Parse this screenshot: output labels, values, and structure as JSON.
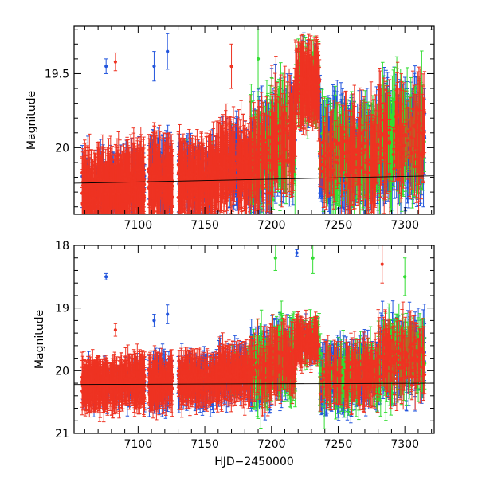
{
  "chart_data": [
    {
      "type": "scatter",
      "panel": "top",
      "title": "",
      "xlabel": "",
      "ylabel": "Magnitude",
      "xlim": [
        7052,
        7322
      ],
      "ylim": [
        20.45,
        19.18
      ],
      "y_inverted": true,
      "xticks": [
        {
          "value": 7100,
          "label": "7100"
        },
        {
          "value": 7150,
          "label": "7150"
        },
        {
          "value": 7200,
          "label": "7200"
        },
        {
          "value": 7250,
          "label": "7250"
        },
        {
          "value": 7300,
          "label": "7300"
        }
      ],
      "yticks": [
        {
          "value": 19.5,
          "label": "19.5"
        },
        {
          "value": 20.0,
          "label": "20"
        }
      ],
      "reference_line": {
        "slope_note": "faint black trend line",
        "x": [
          7052,
          7322
        ],
        "y": [
          20.24,
          20.19
        ]
      },
      "series": [
        {
          "name": "blue",
          "color": "#2255dd"
        },
        {
          "name": "green",
          "color": "#33dd33"
        },
        {
          "name": "red",
          "color": "#ee3322"
        }
      ],
      "segments": [
        {
          "x0": 7058,
          "x1": 7090,
          "center": 20.28,
          "spread": 0.17,
          "err": 0.18,
          "weights": [
            0.12,
            0.0,
            0.88
          ]
        },
        {
          "x0": 7090,
          "x1": 7105,
          "center": 20.25,
          "spread": 0.18,
          "err": 0.19,
          "weights": [
            0.22,
            0.0,
            0.78
          ]
        },
        {
          "x0": 7108,
          "x1": 7126,
          "center": 20.22,
          "spread": 0.17,
          "err": 0.2,
          "weights": [
            0.3,
            0.0,
            0.7
          ]
        },
        {
          "x0": 7130,
          "x1": 7160,
          "center": 20.22,
          "spread": 0.18,
          "err": 0.18,
          "weights": [
            0.25,
            0.02,
            0.73
          ]
        },
        {
          "x0": 7160,
          "x1": 7184,
          "center": 20.12,
          "spread": 0.18,
          "err": 0.2,
          "weights": [
            0.25,
            0.03,
            0.72
          ]
        },
        {
          "x0": 7184,
          "x1": 7200,
          "center": 20.08,
          "spread": 0.25,
          "err": 0.25,
          "weights": [
            0.4,
            0.3,
            0.3
          ]
        },
        {
          "x0": 7200,
          "x1": 7218,
          "center": 19.95,
          "spread": 0.28,
          "err": 0.25,
          "weights": [
            0.35,
            0.3,
            0.35
          ]
        },
        {
          "x0": 7218,
          "x1": 7236,
          "center": 19.58,
          "spread": 0.12,
          "err": 0.2,
          "weights": [
            0.1,
            0.25,
            0.65
          ]
        },
        {
          "x0": 7236,
          "x1": 7260,
          "center": 20.05,
          "spread": 0.25,
          "err": 0.25,
          "weights": [
            0.5,
            0.3,
            0.2
          ]
        },
        {
          "x0": 7260,
          "x1": 7280,
          "center": 20.05,
          "spread": 0.25,
          "err": 0.25,
          "weights": [
            0.35,
            0.3,
            0.35
          ]
        },
        {
          "x0": 7280,
          "x1": 7315,
          "center": 19.95,
          "spread": 0.3,
          "err": 0.25,
          "weights": [
            0.35,
            0.35,
            0.3
          ]
        }
      ],
      "notable_points": [
        {
          "x": 7076,
          "y": 19.45,
          "err": 0.05,
          "series": "blue"
        },
        {
          "x": 7083,
          "y": 19.42,
          "err": 0.06,
          "series": "red"
        },
        {
          "x": 7112,
          "y": 19.45,
          "err": 0.1,
          "series": "blue"
        },
        {
          "x": 7122,
          "y": 19.35,
          "err": 0.12,
          "series": "blue"
        },
        {
          "x": 7170,
          "y": 19.45,
          "err": 0.15,
          "series": "red"
        },
        {
          "x": 7190,
          "y": 19.4,
          "err": 0.2,
          "series": "green"
        }
      ]
    },
    {
      "type": "scatter",
      "panel": "bottom",
      "title": "",
      "xlabel": "HJD−2450000",
      "ylabel": "Magnitude",
      "xlim": [
        7052,
        7322
      ],
      "ylim": [
        21.0,
        18.0
      ],
      "y_inverted": true,
      "xticks": [
        {
          "value": 7100,
          "label": "7100"
        },
        {
          "value": 7150,
          "label": "7150"
        },
        {
          "value": 7200,
          "label": "7200"
        },
        {
          "value": 7250,
          "label": "7250"
        },
        {
          "value": 7300,
          "label": "7300"
        }
      ],
      "yticks": [
        {
          "value": 18,
          "label": "18"
        },
        {
          "value": 19,
          "label": "19"
        },
        {
          "value": 20,
          "label": "20"
        },
        {
          "value": 21,
          "label": "21"
        }
      ],
      "reference_line": {
        "slope_note": "faint black trend line",
        "x": [
          7052,
          7322
        ],
        "y": [
          20.22,
          20.2
        ]
      },
      "series": [
        {
          "name": "blue",
          "color": "#2255dd"
        },
        {
          "name": "green",
          "color": "#33dd33"
        },
        {
          "name": "red",
          "color": "#ee3322"
        }
      ],
      "segments": [
        {
          "x0": 7058,
          "x1": 7090,
          "center": 20.22,
          "spread": 0.25,
          "err": 0.28,
          "weights": [
            0.12,
            0.0,
            0.88
          ]
        },
        {
          "x0": 7090,
          "x1": 7105,
          "center": 20.2,
          "spread": 0.28,
          "err": 0.28,
          "weights": [
            0.25,
            0.0,
            0.75
          ]
        },
        {
          "x0": 7108,
          "x1": 7126,
          "center": 20.18,
          "spread": 0.3,
          "err": 0.3,
          "weights": [
            0.35,
            0.0,
            0.65
          ]
        },
        {
          "x0": 7130,
          "x1": 7160,
          "center": 20.15,
          "spread": 0.28,
          "err": 0.28,
          "weights": [
            0.3,
            0.02,
            0.68
          ]
        },
        {
          "x0": 7160,
          "x1": 7184,
          "center": 20.05,
          "spread": 0.3,
          "err": 0.3,
          "weights": [
            0.3,
            0.03,
            0.67
          ]
        },
        {
          "x0": 7184,
          "x1": 7200,
          "center": 20.0,
          "spread": 0.45,
          "err": 0.4,
          "weights": [
            0.4,
            0.3,
            0.3
          ]
        },
        {
          "x0": 7200,
          "x1": 7218,
          "center": 19.85,
          "spread": 0.5,
          "err": 0.4,
          "weights": [
            0.3,
            0.35,
            0.35
          ]
        },
        {
          "x0": 7218,
          "x1": 7236,
          "center": 19.55,
          "spread": 0.22,
          "err": 0.25,
          "weights": [
            0.1,
            0.2,
            0.7
          ]
        },
        {
          "x0": 7236,
          "x1": 7260,
          "center": 20.1,
          "spread": 0.4,
          "err": 0.35,
          "weights": [
            0.5,
            0.3,
            0.2
          ]
        },
        {
          "x0": 7260,
          "x1": 7280,
          "center": 20.05,
          "spread": 0.4,
          "err": 0.35,
          "weights": [
            0.35,
            0.3,
            0.35
          ]
        },
        {
          "x0": 7280,
          "x1": 7315,
          "center": 19.8,
          "spread": 0.55,
          "err": 0.4,
          "weights": [
            0.35,
            0.35,
            0.3
          ]
        }
      ],
      "notable_points": [
        {
          "x": 7076,
          "y": 18.5,
          "err": 0.05,
          "series": "blue"
        },
        {
          "x": 7112,
          "y": 19.2,
          "err": 0.1,
          "series": "blue"
        },
        {
          "x": 7122,
          "y": 19.1,
          "err": 0.15,
          "series": "blue"
        },
        {
          "x": 7083,
          "y": 19.35,
          "err": 0.1,
          "series": "red"
        },
        {
          "x": 7219,
          "y": 18.12,
          "err": 0.05,
          "series": "blue"
        },
        {
          "x": 7203,
          "y": 18.2,
          "err": 0.2,
          "series": "green"
        },
        {
          "x": 7231,
          "y": 18.2,
          "err": 0.25,
          "series": "green"
        },
        {
          "x": 7283,
          "y": 18.3,
          "err": 0.3,
          "series": "red"
        },
        {
          "x": 7300,
          "y": 18.5,
          "err": 0.3,
          "series": "green"
        }
      ]
    }
  ]
}
